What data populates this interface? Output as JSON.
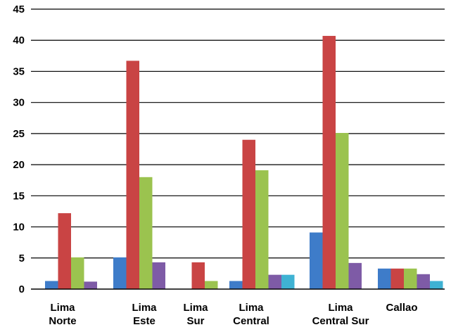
{
  "chart_data": {
    "type": "bar",
    "title": "",
    "xlabel": "",
    "ylabel": "",
    "ylim": [
      0,
      45
    ],
    "yticks": [
      0,
      5,
      10,
      15,
      20,
      25,
      30,
      35,
      40,
      45
    ],
    "grid": true,
    "legend": "none",
    "categories": [
      [
        "Lima",
        "Norte"
      ],
      [
        "Lima",
        "Este"
      ],
      [
        "Lima",
        "Sur"
      ],
      [
        "Lima",
        "Central"
      ],
      [
        "Lima",
        "Central Sur"
      ],
      [
        "Callao"
      ]
    ],
    "series": [
      {
        "color": "#3E7CC9",
        "values": [
          1.3,
          5.1,
          0,
          1.3,
          9.1,
          3.3
        ]
      },
      {
        "color": "#C94444",
        "values": [
          12.2,
          36.7,
          4.3,
          24.0,
          40.7,
          3.3
        ]
      },
      {
        "color": "#9BC34F",
        "values": [
          5.1,
          18.0,
          1.3,
          19.1,
          25.1,
          3.3
        ]
      },
      {
        "color": "#7E5BA6",
        "values": [
          1.2,
          4.3,
          0,
          2.3,
          4.2,
          2.4
        ]
      },
      {
        "color": "#3FB2D3",
        "values": [
          0,
          0,
          0,
          2.3,
          0,
          1.3
        ]
      }
    ]
  }
}
